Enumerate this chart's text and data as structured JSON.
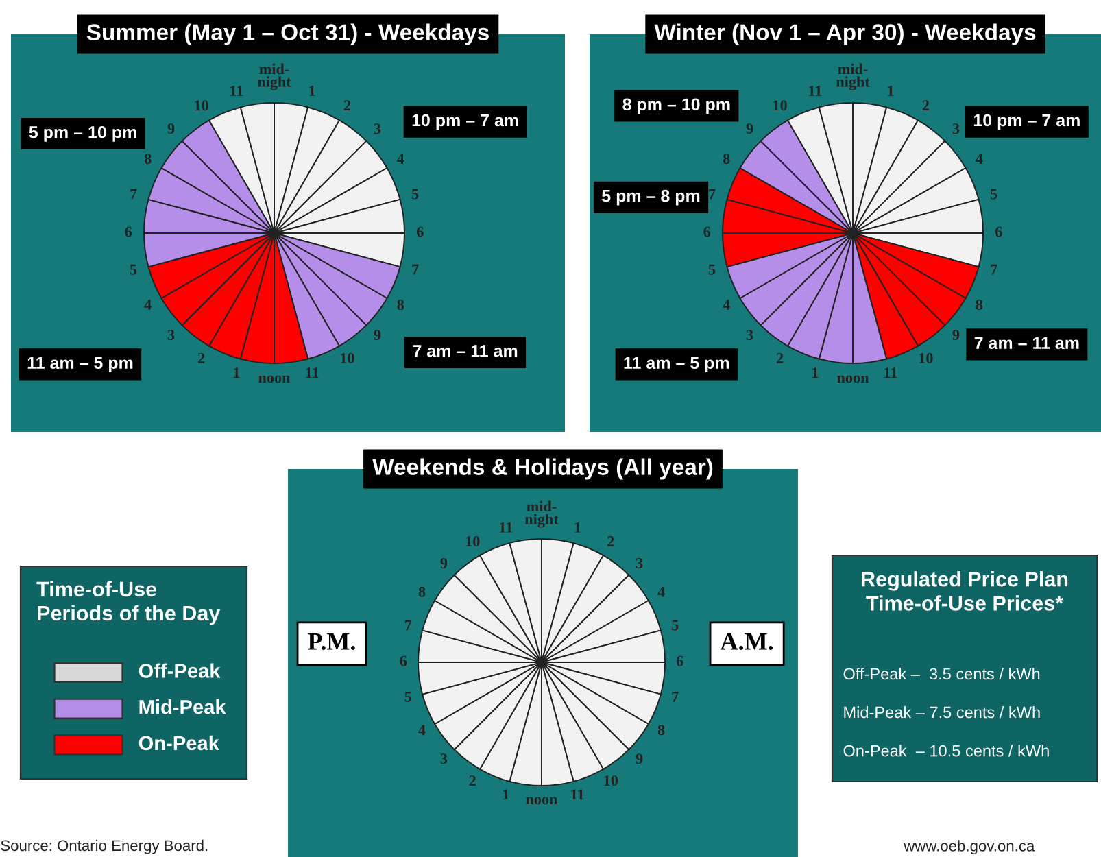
{
  "chart_data": [
    {
      "type": "pie",
      "title": "Summer (May 1 – Oct 31) - Weekdays",
      "categories": [
        null,
        null,
        null,
        null,
        null,
        null,
        null,
        null,
        null,
        null,
        null,
        null,
        null,
        null,
        null,
        null,
        null,
        null,
        null,
        null,
        null,
        null,
        null,
        null
      ],
      "values": [
        4.1667,
        4.1667,
        4.1667,
        4.1667,
        4.1667,
        4.1667,
        4.1667,
        4.1667,
        4.1667,
        4.1667,
        4.1667,
        4.1667,
        4.1667,
        4.1667,
        4.1667,
        4.1667,
        4.1667,
        4.1667,
        4.1667,
        4.1667,
        4.1667,
        4.1667,
        4.1667,
        4.1667
      ],
      "colors": [
        "#f2f2f2",
        "#f2f2f2",
        "#f2f2f2",
        "#f2f2f2",
        "#f2f2f2",
        "#f2f2f2",
        "#f2f2f2",
        "#b48ee8",
        "#b48ee8",
        "#b48ee8",
        "#b48ee8",
        "#ff0000",
        "#ff0000",
        "#ff0000",
        "#ff0000",
        "#ff0000",
        "#ff0000",
        "#b48ee8",
        "#b48ee8",
        "#b48ee8",
        "#b48ee8",
        "#b48ee8",
        "#f2f2f2",
        "#f2f2f2"
      ],
      "annotations": [
        "mid-\nnight",
        "1",
        "2",
        "3",
        "4",
        "5",
        "6",
        "7",
        "8",
        "9",
        "10",
        "11",
        "noon",
        "1",
        "2",
        "3",
        "4",
        "5",
        "6",
        "7",
        "8",
        "9",
        "10",
        "11",
        "5 pm – 10 pm",
        "10 pm – 7 am",
        "11 am – 5 pm",
        "7 am – 11 am"
      ]
    },
    {
      "type": "pie",
      "title": "Winter (Nov 1 – Apr 30) - Weekdays",
      "categories": [
        null,
        null,
        null,
        null,
        null,
        null,
        null,
        null,
        null,
        null,
        null,
        null,
        null,
        null,
        null,
        null,
        null,
        null,
        null,
        null,
        null,
        null,
        null,
        null
      ],
      "values": [
        4.1667,
        4.1667,
        4.1667,
        4.1667,
        4.1667,
        4.1667,
        4.1667,
        4.1667,
        4.1667,
        4.1667,
        4.1667,
        4.1667,
        4.1667,
        4.1667,
        4.1667,
        4.1667,
        4.1667,
        4.1667,
        4.1667,
        4.1667,
        4.1667,
        4.1667,
        4.1667,
        4.1667
      ],
      "colors": [
        "#f2f2f2",
        "#f2f2f2",
        "#f2f2f2",
        "#f2f2f2",
        "#f2f2f2",
        "#f2f2f2",
        "#f2f2f2",
        "#ff0000",
        "#ff0000",
        "#ff0000",
        "#ff0000",
        "#b48ee8",
        "#b48ee8",
        "#b48ee8",
        "#b48ee8",
        "#b48ee8",
        "#b48ee8",
        "#ff0000",
        "#ff0000",
        "#ff0000",
        "#b48ee8",
        "#b48ee8",
        "#f2f2f2",
        "#f2f2f2"
      ],
      "annotations": [
        "mid-\nnight",
        "1",
        "2",
        "3",
        "4",
        "5",
        "6",
        "7",
        "8",
        "9",
        "10",
        "11",
        "noon",
        "1",
        "2",
        "3",
        "4",
        "5",
        "6",
        "7",
        "8",
        "9",
        "10",
        "11",
        "8 pm – 10 pm",
        "10 pm – 7 am",
        "5 pm – 8 pm",
        "11 am – 5 pm",
        "7 am – 11 am"
      ]
    },
    {
      "type": "pie",
      "title": "Weekends & Holidays (All year)",
      "categories": [
        null,
        null,
        null,
        null,
        null,
        null,
        null,
        null,
        null,
        null,
        null,
        null,
        null,
        null,
        null,
        null,
        null,
        null,
        null,
        null,
        null,
        null,
        null,
        null
      ],
      "values": [
        4.1667,
        4.1667,
        4.1667,
        4.1667,
        4.1667,
        4.1667,
        4.1667,
        4.1667,
        4.1667,
        4.1667,
        4.1667,
        4.1667,
        4.1667,
        4.1667,
        4.1667,
        4.1667,
        4.1667,
        4.1667,
        4.1667,
        4.1667,
        4.1667,
        4.1667,
        4.1667,
        4.1667
      ],
      "colors": [
        "#f2f2f2",
        "#f2f2f2",
        "#f2f2f2",
        "#f2f2f2",
        "#f2f2f2",
        "#f2f2f2",
        "#f2f2f2",
        "#f2f2f2",
        "#f2f2f2",
        "#f2f2f2",
        "#f2f2f2",
        "#f2f2f2",
        "#f2f2f2",
        "#f2f2f2",
        "#f2f2f2",
        "#f2f2f2",
        "#f2f2f2",
        "#f2f2f2",
        "#f2f2f2",
        "#f2f2f2",
        "#f2f2f2",
        "#f2f2f2",
        "#f2f2f2",
        "#f2f2f2"
      ],
      "annotations": [
        "mid-\nnight",
        "1",
        "2",
        "3",
        "4",
        "5",
        "6",
        "7",
        "8",
        "9",
        "10",
        "11",
        "noon",
        "1",
        "2",
        "3",
        "4",
        "5",
        "6",
        "7",
        "8",
        "9",
        "10",
        "11",
        "P.M.",
        "A.M."
      ]
    },
    {
      "type": "other",
      "title": "Time-of-Use\nPeriods of the Day",
      "categories": [
        "Off-Peak",
        "Mid-Peak",
        "On-Peak"
      ],
      "colors": [
        "#d8d8d8",
        "#b48ee8",
        "#ff0000"
      ],
      "annotations": [
        "Source: Ontario Energy Board."
      ]
    },
    {
      "type": "other",
      "title": "Regulated Price Plan\nTime-of-Use Prices*",
      "categories": [
        "Off-Peak –  3.5 cents / kWh",
        "Mid-Peak – 7.5 cents / kWh",
        "On-Peak  – 10.5 cents / kWh"
      ],
      "annotations": [
        "www.oeb.gov.on.ca"
      ]
    }
  ]
}
